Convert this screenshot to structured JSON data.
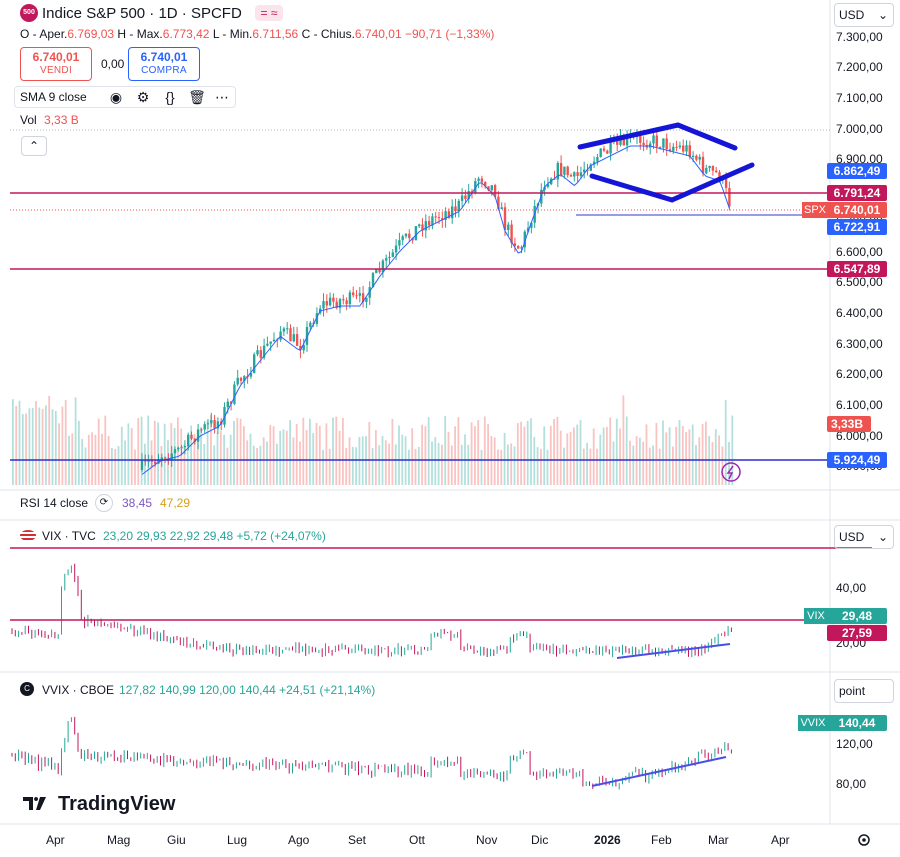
{
  "header": {
    "logo_text": "500",
    "title": "Indice S&P 500 · 1D · SPCFD",
    "ohlc": {
      "open_label": "O - Aper.",
      "open": "6.769,03",
      "high_label": "H - Max.",
      "high": "6.773,42",
      "low_label": "L - Min.",
      "low": "6.711,56",
      "close_label": "C - Chius.",
      "close": "6.740,01",
      "change": "−90,71 (−1,33%)"
    },
    "sell": {
      "price": "6.740,01",
      "label": "VENDI"
    },
    "spread": "0,00",
    "buy": {
      "price": "6.740,01",
      "label": "COMPRA"
    },
    "currency": "USD"
  },
  "indicators": {
    "sma": "SMA 9 close",
    "vol_label": "Vol",
    "vol_value": "3,33 B",
    "rsi_label": "RSI 14 close",
    "rsi_v1": "38,45",
    "rsi_v2": "47,29"
  },
  "main_axis": {
    "ticks": [
      "7.300,00",
      "7.200,00",
      "7.100,00",
      "7.000,00",
      "6.900,00",
      "6.800,00",
      "6.700,00",
      "6.600,00",
      "6.500,00",
      "6.400,00",
      "6.300,00",
      "6.200,00",
      "6.100,00",
      "6.000,00",
      "5.900,00"
    ],
    "tags": {
      "t1": "6.862,49",
      "t2": "6.791,24",
      "spx_label": "SPX",
      "spx": "6.740,01",
      "t3": "6.722,91",
      "t4": "6.547,89",
      "vol": "3,33B",
      "t5": "5.924,49"
    }
  },
  "vix": {
    "symbol": "VIX · TVC",
    "values": "23,20  29,93  22,92  29,48  +5,72 (+24,07%)",
    "currency": "USD",
    "ticks": [
      "40,00",
      "20,00"
    ],
    "tag_label": "VIX",
    "tag_value": "29,48",
    "line_value": "27,59"
  },
  "vvix": {
    "symbol": "VVIX · CBOE",
    "values": "127,82  140,99  120,00  140,44  +24,51 (+21,14%)",
    "unit": "point",
    "ticks": [
      "120,00",
      "80,00"
    ],
    "tag_label": "VVIX",
    "tag_value": "140,44"
  },
  "x_axis": [
    "Apr",
    "Mag",
    "Giu",
    "Lug",
    "Ago",
    "Set",
    "Ott",
    "Nov",
    "Dic",
    "2026",
    "Feb",
    "Mar",
    "Apr"
  ],
  "branding": "TradingView",
  "colors": {
    "up": "#26a69a",
    "down": "#ef5350",
    "red_line": "#c2185b",
    "blue_line": "#2a2ec9",
    "drawing": "#1515d8",
    "sma": "#2962ff",
    "support": "#5b5fe0"
  },
  "chart_data": {
    "type": "candlestick",
    "ylim": [
      5900,
      7300
    ],
    "horizontal_lines": [
      6791.24,
      6547.89,
      5924.49,
      6722.91
    ],
    "last_close": 6740.01
  }
}
